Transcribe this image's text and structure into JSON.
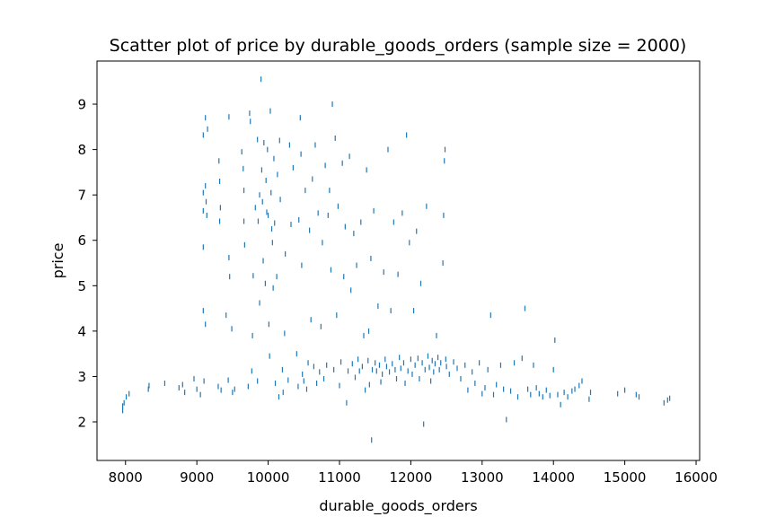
{
  "chart_data": {
    "type": "scatter",
    "title": "Scatter plot of price by durable_goods_orders (sample size = 2000)",
    "xlabel": "durable_goods_orders",
    "ylabel": "price",
    "xlim": [
      7600,
      16050
    ],
    "ylim": [
      1.15,
      9.95
    ],
    "xticks": [
      8000,
      9000,
      10000,
      11000,
      12000,
      13000,
      14000,
      15000,
      16000
    ],
    "yticks": [
      2,
      3,
      4,
      5,
      6,
      7,
      8,
      9
    ],
    "grid": false,
    "marker_color": "#1f77b4",
    "series": [
      {
        "points": [
          [
            7960,
            2.25
          ],
          [
            7960,
            2.35
          ],
          [
            7980,
            2.42
          ],
          [
            8010,
            2.55
          ],
          [
            8050,
            2.62
          ],
          [
            8320,
            2.72
          ],
          [
            8330,
            2.8
          ],
          [
            8550,
            2.85
          ],
          [
            8750,
            2.75
          ],
          [
            8800,
            2.82
          ],
          [
            8830,
            2.65
          ],
          [
            8960,
            2.95
          ],
          [
            9000,
            2.72
          ],
          [
            9050,
            2.6
          ],
          [
            9090,
            4.45
          ],
          [
            9090,
            7.05
          ],
          [
            9090,
            8.32
          ],
          [
            9090,
            6.65
          ],
          [
            9090,
            5.85
          ],
          [
            9100,
            2.9
          ],
          [
            9120,
            8.7
          ],
          [
            9120,
            7.2
          ],
          [
            9120,
            4.15
          ],
          [
            9130,
            6.85
          ],
          [
            9140,
            6.55
          ],
          [
            9150,
            8.45
          ],
          [
            9300,
            2.78
          ],
          [
            9310,
            7.75
          ],
          [
            9320,
            7.3
          ],
          [
            9320,
            6.42
          ],
          [
            9330,
            6.72
          ],
          [
            9340,
            2.7
          ],
          [
            9410,
            4.35
          ],
          [
            9440,
            2.92
          ],
          [
            9450,
            5.62
          ],
          [
            9450,
            8.72
          ],
          [
            9460,
            5.2
          ],
          [
            9490,
            4.05
          ],
          [
            9500,
            2.65
          ],
          [
            9530,
            2.72
          ],
          [
            9630,
            7.95
          ],
          [
            9650,
            7.58
          ],
          [
            9660,
            7.1
          ],
          [
            9660,
            6.42
          ],
          [
            9670,
            5.9
          ],
          [
            9720,
            2.78
          ],
          [
            9740,
            8.8
          ],
          [
            9750,
            8.62
          ],
          [
            9770,
            3.12
          ],
          [
            9780,
            3.9
          ],
          [
            9790,
            5.22
          ],
          [
            9820,
            6.72
          ],
          [
            9850,
            2.9
          ],
          [
            9850,
            8.22
          ],
          [
            9860,
            6.42
          ],
          [
            9880,
            7.0
          ],
          [
            9880,
            4.62
          ],
          [
            9900,
            9.55
          ],
          [
            9910,
            7.55
          ],
          [
            9920,
            6.85
          ],
          [
            9930,
            5.55
          ],
          [
            9940,
            8.15
          ],
          [
            9960,
            5.05
          ],
          [
            9970,
            7.32
          ],
          [
            9980,
            6.62
          ],
          [
            9990,
            8.0
          ],
          [
            10000,
            6.55
          ],
          [
            10010,
            4.15
          ],
          [
            10020,
            3.45
          ],
          [
            10030,
            8.85
          ],
          [
            10040,
            7.05
          ],
          [
            10050,
            6.25
          ],
          [
            10060,
            5.95
          ],
          [
            10070,
            4.95
          ],
          [
            10080,
            7.8
          ],
          [
            10090,
            6.38
          ],
          [
            10100,
            2.85
          ],
          [
            10120,
            5.2
          ],
          [
            10130,
            7.45
          ],
          [
            10150,
            2.55
          ],
          [
            10160,
            8.2
          ],
          [
            10170,
            6.9
          ],
          [
            10200,
            3.15
          ],
          [
            10210,
            2.65
          ],
          [
            10230,
            3.95
          ],
          [
            10240,
            5.7
          ],
          [
            10280,
            2.92
          ],
          [
            10300,
            8.1
          ],
          [
            10320,
            6.35
          ],
          [
            10350,
            7.6
          ],
          [
            10400,
            3.5
          ],
          [
            10420,
            2.78
          ],
          [
            10430,
            6.45
          ],
          [
            10450,
            8.7
          ],
          [
            10460,
            7.9
          ],
          [
            10470,
            5.45
          ],
          [
            10480,
            3.05
          ],
          [
            10500,
            2.9
          ],
          [
            10520,
            7.1
          ],
          [
            10540,
            2.72
          ],
          [
            10560,
            3.3
          ],
          [
            10580,
            6.22
          ],
          [
            10600,
            4.25
          ],
          [
            10620,
            7.35
          ],
          [
            10640,
            3.22
          ],
          [
            10660,
            8.1
          ],
          [
            10680,
            2.85
          ],
          [
            10700,
            6.6
          ],
          [
            10720,
            3.1
          ],
          [
            10740,
            4.1
          ],
          [
            10760,
            5.95
          ],
          [
            10780,
            2.95
          ],
          [
            10800,
            7.65
          ],
          [
            10820,
            3.25
          ],
          [
            10840,
            6.55
          ],
          [
            10860,
            7.1
          ],
          [
            10880,
            5.35
          ],
          [
            10900,
            9.0
          ],
          [
            10920,
            3.15
          ],
          [
            10940,
            8.25
          ],
          [
            10960,
            4.35
          ],
          [
            10980,
            6.75
          ],
          [
            11000,
            2.8
          ],
          [
            11020,
            3.32
          ],
          [
            11040,
            7.7
          ],
          [
            11060,
            5.2
          ],
          [
            11080,
            6.3
          ],
          [
            11100,
            2.42
          ],
          [
            11120,
            3.12
          ],
          [
            11140,
            7.85
          ],
          [
            11160,
            4.9
          ],
          [
            11180,
            3.28
          ],
          [
            11200,
            6.15
          ],
          [
            11220,
            2.98
          ],
          [
            11240,
            5.45
          ],
          [
            11260,
            3.38
          ],
          [
            11280,
            3.12
          ],
          [
            11300,
            6.4
          ],
          [
            11320,
            3.22
          ],
          [
            11340,
            3.9
          ],
          [
            11360,
            2.7
          ],
          [
            11380,
            7.55
          ],
          [
            11400,
            3.35
          ],
          [
            11410,
            4.0
          ],
          [
            11420,
            2.82
          ],
          [
            11440,
            5.6
          ],
          [
            11460,
            3.15
          ],
          [
            11480,
            6.65
          ],
          [
            11500,
            3.3
          ],
          [
            11520,
            3.12
          ],
          [
            11540,
            4.55
          ],
          [
            11560,
            3.25
          ],
          [
            11580,
            2.88
          ],
          [
            11600,
            3.05
          ],
          [
            11620,
            5.3
          ],
          [
            11640,
            3.38
          ],
          [
            11660,
            3.22
          ],
          [
            11680,
            8.0
          ],
          [
            11700,
            3.1
          ],
          [
            11720,
            4.45
          ],
          [
            11740,
            3.28
          ],
          [
            11760,
            6.4
          ],
          [
            11780,
            3.15
          ],
          [
            11800,
            2.95
          ],
          [
            11820,
            5.25
          ],
          [
            11840,
            3.42
          ],
          [
            11860,
            3.18
          ],
          [
            11880,
            6.6
          ],
          [
            11900,
            3.3
          ],
          [
            11920,
            2.85
          ],
          [
            11940,
            8.32
          ],
          [
            11960,
            3.12
          ],
          [
            11980,
            5.95
          ],
          [
            12000,
            3.38
          ],
          [
            12020,
            3.05
          ],
          [
            12040,
            4.45
          ],
          [
            12060,
            3.25
          ],
          [
            12080,
            6.2
          ],
          [
            12100,
            3.4
          ],
          [
            12120,
            2.95
          ],
          [
            12140,
            5.05
          ],
          [
            12160,
            3.3
          ],
          [
            12180,
            1.95
          ],
          [
            12200,
            3.15
          ],
          [
            12220,
            6.75
          ],
          [
            12240,
            3.45
          ],
          [
            12260,
            3.2
          ],
          [
            12280,
            2.9
          ],
          [
            12300,
            3.35
          ],
          [
            12320,
            3.1
          ],
          [
            12340,
            3.28
          ],
          [
            12360,
            3.9
          ],
          [
            12380,
            3.42
          ],
          [
            12400,
            3.15
          ],
          [
            12420,
            3.3
          ],
          [
            12450,
            5.5
          ],
          [
            12460,
            6.55
          ],
          [
            12470,
            7.75
          ],
          [
            12480,
            8.0
          ],
          [
            12490,
            3.38
          ],
          [
            12500,
            3.22
          ],
          [
            12540,
            3.05
          ],
          [
            12600,
            3.32
          ],
          [
            12650,
            3.18
          ],
          [
            12700,
            2.95
          ],
          [
            12760,
            3.25
          ],
          [
            12800,
            2.7
          ],
          [
            12860,
            3.1
          ],
          [
            12900,
            2.85
          ],
          [
            12960,
            3.3
          ],
          [
            13000,
            2.62
          ],
          [
            13040,
            2.75
          ],
          [
            13080,
            3.15
          ],
          [
            13120,
            4.35
          ],
          [
            13160,
            2.6
          ],
          [
            13200,
            2.82
          ],
          [
            13260,
            3.25
          ],
          [
            13300,
            2.72
          ],
          [
            13340,
            2.05
          ],
          [
            13400,
            2.68
          ],
          [
            13450,
            3.3
          ],
          [
            13500,
            2.55
          ],
          [
            13560,
            3.4
          ],
          [
            13600,
            4.5
          ],
          [
            13640,
            2.72
          ],
          [
            13680,
            2.6
          ],
          [
            13720,
            3.25
          ],
          [
            13760,
            2.75
          ],
          [
            13800,
            2.62
          ],
          [
            13850,
            2.55
          ],
          [
            13900,
            2.7
          ],
          [
            13950,
            2.58
          ],
          [
            14000,
            3.15
          ],
          [
            14020,
            3.8
          ],
          [
            14060,
            2.6
          ],
          [
            14100,
            2.38
          ],
          [
            14150,
            2.65
          ],
          [
            14200,
            2.55
          ],
          [
            14260,
            2.68
          ],
          [
            14300,
            2.72
          ],
          [
            14360,
            2.8
          ],
          [
            14400,
            2.9
          ],
          [
            14500,
            2.5
          ],
          [
            14520,
            2.65
          ],
          [
            14900,
            2.62
          ],
          [
            15000,
            2.7
          ],
          [
            15160,
            2.6
          ],
          [
            15200,
            2.55
          ],
          [
            15550,
            2.42
          ],
          [
            15600,
            2.48
          ],
          [
            15630,
            2.52
          ],
          [
            11450,
            1.6
          ]
        ]
      }
    ]
  }
}
